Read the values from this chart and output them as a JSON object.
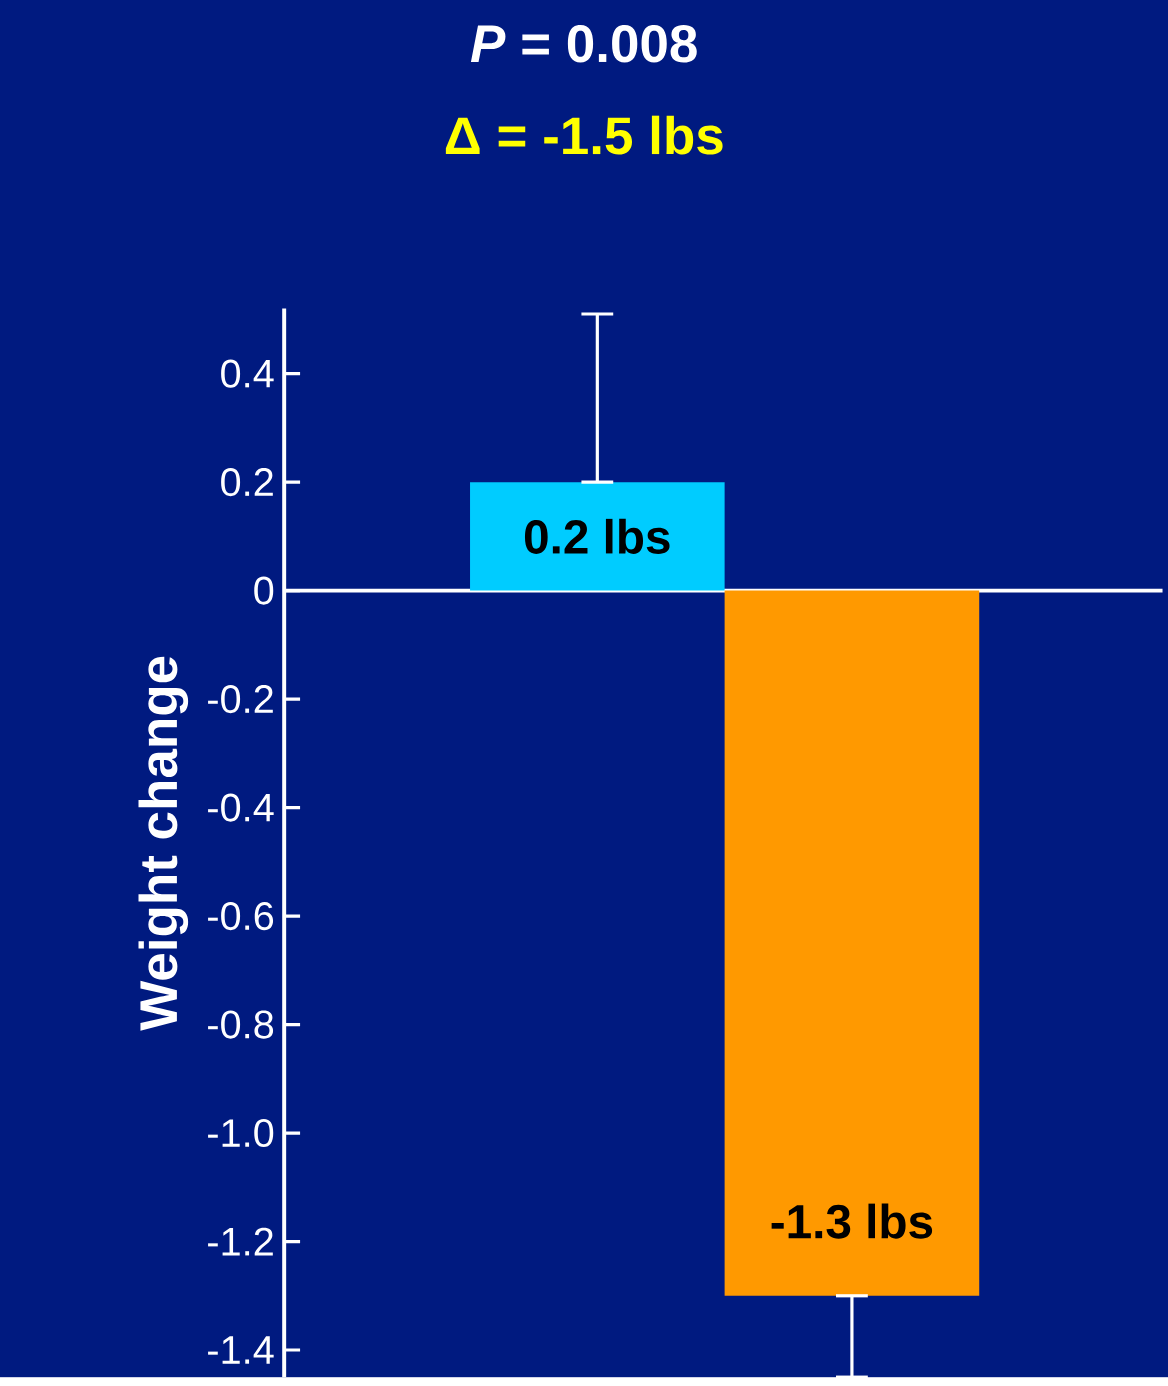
{
  "chart_data": {
    "type": "bar",
    "title": "*P* = 0.008",
    "subtitle": "Δ = -1.5 lbs",
    "ylabel": "Weight change",
    "categories": [
      null,
      null
    ],
    "values": [
      0.2,
      -1.3
    ],
    "colors": [
      "#00ccff",
      "#ff9900"
    ],
    "errors": [
      [
        0.2,
        0.51
      ],
      [
        -1.45,
        -1.3
      ]
    ],
    "value_labels": [
      "0.2 lbs",
      "-1.3 lbs"
    ],
    "ylim": [
      -1.45,
      0.52
    ],
    "yticks": [
      {
        "value": -1.4,
        "label": "-1.4"
      },
      {
        "value": -1.2,
        "label": "-1.2"
      },
      {
        "value": -1.0,
        "label": "-1.0"
      },
      {
        "value": -0.8,
        "label": "-0.8"
      },
      {
        "value": -0.6,
        "label": "-0.6"
      },
      {
        "value": -0.4,
        "label": "-0.4"
      },
      {
        "value": -0.2,
        "label": "-0.2"
      },
      0,
      0.2,
      0.4
    ]
  }
}
